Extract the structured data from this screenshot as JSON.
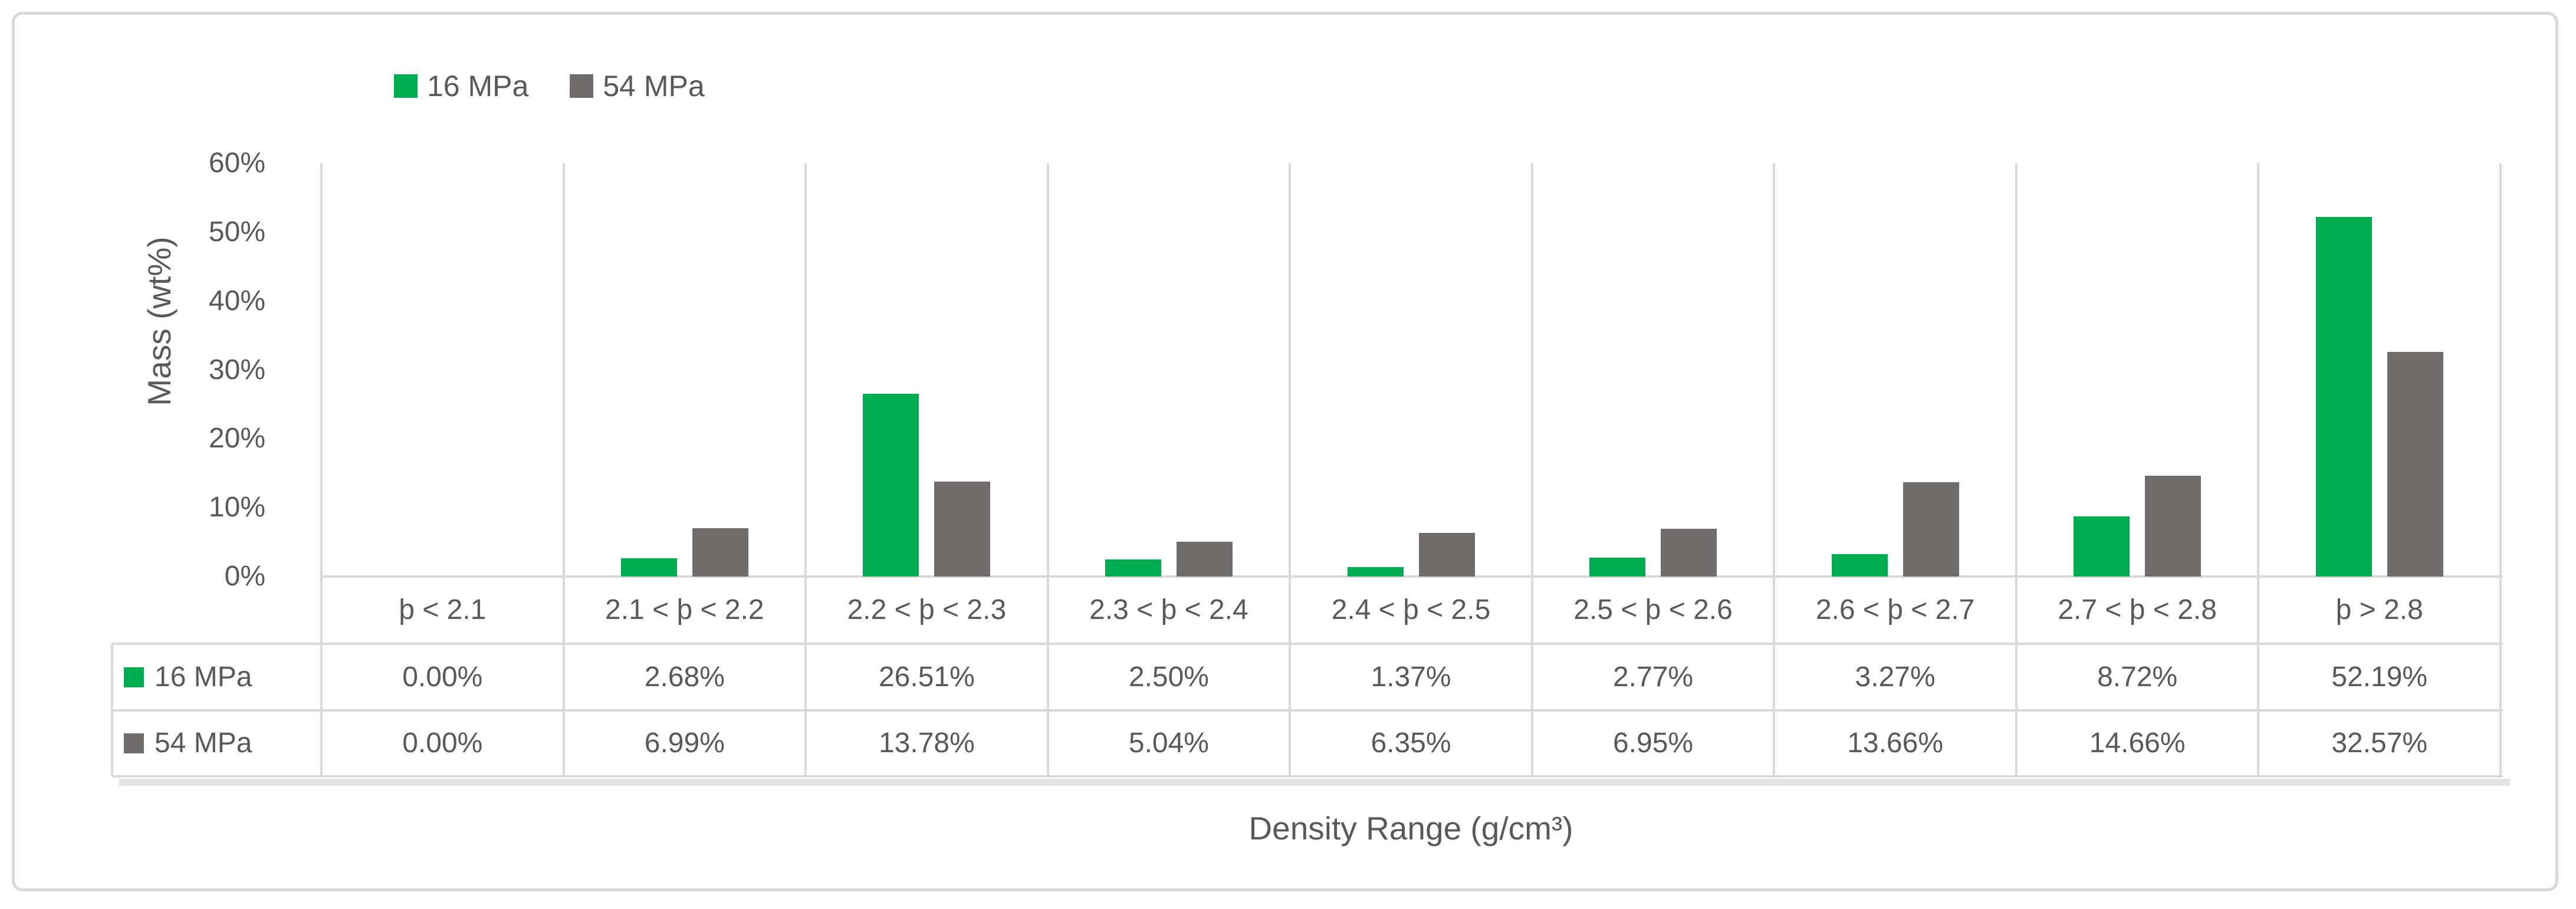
{
  "chart_data": {
    "type": "bar",
    "title": "",
    "xlabel": "Density Range (g/cm³)",
    "ylabel": "Mass (wt%)",
    "ylim": [
      0,
      60
    ],
    "ytick_labels": [
      "60%",
      "50%",
      "40%",
      "30%",
      "20%",
      "10%",
      "0%"
    ],
    "grid": "vertical-category-separators-only",
    "legend_position": "top-left",
    "data_table_shown": true,
    "categories": [
      "þ < 2.1",
      "2.1 < þ < 2.2",
      "2.2 < þ < 2.3",
      "2.3 < þ < 2.4",
      "2.4 < þ < 2.5",
      "2.5 < þ < 2.6",
      "2.6 < þ < 2.7",
      "2.7 < þ < 2.8",
      "þ > 2.8"
    ],
    "series": [
      {
        "name": "16 MPa",
        "color": "#00AC50",
        "values": [
          0.0,
          2.68,
          26.51,
          2.5,
          1.37,
          2.77,
          3.27,
          8.72,
          52.19
        ],
        "formatted": [
          "0.00%",
          "2.68%",
          "26.51%",
          "2.50%",
          "1.37%",
          "2.77%",
          "3.27%",
          "8.72%",
          "52.19%"
        ]
      },
      {
        "name": "54 MPa",
        "color": "#706C6B",
        "values": [
          0.0,
          6.99,
          13.78,
          5.04,
          6.35,
          6.95,
          13.66,
          14.66,
          32.57
        ],
        "formatted": [
          "0.00%",
          "6.99%",
          "13.78%",
          "5.04%",
          "6.35%",
          "6.95%",
          "13.66%",
          "14.66%",
          "32.57%"
        ]
      }
    ]
  },
  "colors": {
    "grid": "#D9D9D9",
    "frame_border": "#D9D9D9",
    "text": "#595959",
    "background": "#FFFFFF"
  }
}
